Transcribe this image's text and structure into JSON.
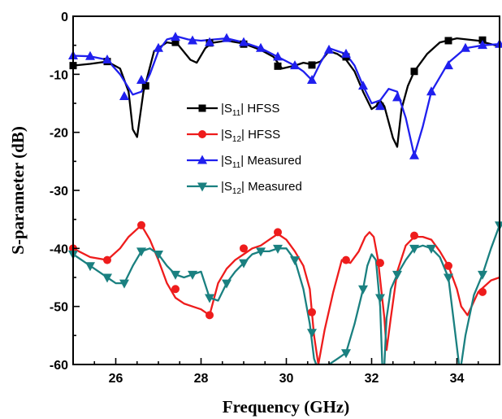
{
  "chart_data": {
    "type": "line",
    "xlabel": "Frequency (GHz)",
    "ylabel": "S-parameter (dB)",
    "xlim": [
      25,
      35
    ],
    "ylim": [
      -60,
      0
    ],
    "xticks": [
      26,
      28,
      30,
      32,
      34
    ],
    "yticks": [
      0,
      -10,
      -20,
      -30,
      -40,
      -50,
      -60
    ],
    "grid": false,
    "legend_position": "center",
    "series": [
      {
        "name": "|S11| HFSS",
        "label_parts": [
          "|S",
          "11",
          "| HFSS"
        ],
        "color": "#000000",
        "marker": "square",
        "x": [
          25.0,
          25.4,
          25.8,
          26.1,
          26.3,
          26.4,
          26.5,
          26.65,
          26.9,
          27.2,
          27.45,
          27.75,
          27.9,
          28.1,
          28.25,
          28.6,
          29.0,
          29.4,
          29.7,
          29.9,
          30.2,
          30.4,
          30.6,
          30.8,
          31.0,
          31.2,
          31.4,
          31.6,
          31.8,
          32.0,
          32.1,
          32.2,
          32.3,
          32.5,
          32.6,
          32.7,
          32.85,
          33.0,
          33.3,
          33.6,
          34.0,
          34.5,
          35.0
        ],
        "y": [
          -8.5,
          -8.2,
          -7.8,
          -9.0,
          -13.0,
          -19.5,
          -20.8,
          -13.0,
          -6.0,
          -4.5,
          -4.8,
          -7.5,
          -8.0,
          -5.5,
          -4.6,
          -4.2,
          -4.7,
          -5.8,
          -7.0,
          -9.0,
          -8.5,
          -8.0,
          -8.3,
          -7.8,
          -6.0,
          -6.5,
          -7.5,
          -9.5,
          -13.0,
          -16.0,
          -15.5,
          -14.5,
          -15.5,
          -21.0,
          -22.5,
          -16.0,
          -12.0,
          -9.5,
          -6.5,
          -4.5,
          -3.8,
          -4.2,
          -5.2
        ],
        "marker_x": [
          25.0,
          25.8,
          26.7,
          27.4,
          28.2,
          29.0,
          29.8,
          30.6,
          31.4,
          32.2,
          33.0,
          33.8,
          34.6
        ],
        "marker_y": [
          -8.5,
          -7.8,
          -12.0,
          -4.5,
          -4.6,
          -4.8,
          -8.6,
          -8.4,
          -7.0,
          -15.5,
          -9.5,
          -4.2,
          -4.1
        ]
      },
      {
        "name": "|S12| HFSS",
        "label_parts": [
          "|S",
          "12",
          "| HFSS"
        ],
        "color": "#ee1c1c",
        "marker": "circle",
        "x": [
          25.0,
          25.4,
          25.8,
          26.1,
          26.3,
          26.6,
          26.8,
          27.0,
          27.2,
          27.4,
          27.6,
          27.8,
          28.0,
          28.2,
          28.4,
          28.6,
          28.8,
          29.0,
          29.2,
          29.4,
          29.6,
          29.8,
          30.0,
          30.2,
          30.4,
          30.55,
          30.65,
          30.75,
          30.9,
          31.1,
          31.3,
          31.5,
          31.7,
          31.85,
          31.95,
          32.05,
          32.15,
          32.3,
          32.35,
          32.45,
          32.6,
          32.8,
          33.0,
          33.2,
          33.4,
          33.6,
          33.8,
          34.0,
          34.1,
          34.25,
          34.5,
          34.8,
          35.0
        ],
        "y": [
          -40.0,
          -41.5,
          -42.0,
          -40.0,
          -38.0,
          -36.0,
          -38.5,
          -42.0,
          -46.0,
          -48.5,
          -49.5,
          -50.0,
          -50.5,
          -51.5,
          -46.0,
          -43.5,
          -42.0,
          -41.0,
          -40.0,
          -39.5,
          -38.5,
          -37.5,
          -38.5,
          -40.5,
          -43.0,
          -47.0,
          -55.0,
          -60.0,
          -54.0,
          -47.5,
          -42.0,
          -42.5,
          -40.5,
          -38.0,
          -37.2,
          -38.0,
          -42.0,
          -52.0,
          -57.5,
          -52.0,
          -44.0,
          -39.5,
          -38.0,
          -38.0,
          -38.5,
          -40.5,
          -43.0,
          -47.0,
          -50.0,
          -51.5,
          -47.5,
          -45.5,
          -45.0
        ],
        "marker_x": [
          25.0,
          25.8,
          26.6,
          27.4,
          28.2,
          29.0,
          29.8,
          30.6,
          31.4,
          32.2,
          33.0,
          33.8,
          34.6
        ],
        "marker_y": [
          -40.0,
          -42.0,
          -36.0,
          -47.0,
          -51.5,
          -40.0,
          -37.2,
          -51.0,
          -42.0,
          -42.5,
          -37.8,
          -43.0,
          -47.5
        ]
      },
      {
        "name": "|S11| Measured",
        "label_parts": [
          "|S",
          "11",
          "| Measured"
        ],
        "color": "#1f1fee",
        "marker": "triangle-up",
        "x": [
          25.0,
          25.4,
          25.8,
          26.1,
          26.4,
          26.6,
          26.8,
          27.0,
          27.2,
          27.45,
          27.7,
          28.0,
          28.3,
          28.6,
          29.0,
          29.4,
          29.8,
          30.2,
          30.4,
          30.6,
          30.8,
          31.0,
          31.4,
          31.6,
          31.8,
          32.0,
          32.2,
          32.4,
          32.6,
          32.8,
          33.0,
          33.2,
          33.4,
          33.8,
          34.2,
          34.6,
          35.0
        ],
        "y": [
          -6.8,
          -6.9,
          -7.5,
          -10.0,
          -13.5,
          -13.0,
          -10.0,
          -6.0,
          -4.0,
          -3.5,
          -4.0,
          -4.2,
          -4.0,
          -3.8,
          -4.5,
          -5.5,
          -7.0,
          -8.5,
          -9.5,
          -11.0,
          -8.0,
          -5.5,
          -6.5,
          -8.5,
          -12.0,
          -15.0,
          -14.5,
          -12.5,
          -13.0,
          -17.5,
          -24.0,
          -19.0,
          -13.0,
          -8.0,
          -5.5,
          -5.0,
          -4.8
        ],
        "marker_x": [
          25.0,
          25.4,
          25.8,
          26.2,
          26.6,
          27.0,
          27.4,
          27.8,
          28.2,
          28.6,
          29.0,
          29.4,
          29.8,
          30.2,
          30.6,
          31.0,
          31.4,
          31.8,
          32.2,
          32.6,
          33.0,
          33.4,
          33.8,
          34.2,
          34.6,
          35.0
        ],
        "marker_y": [
          -6.8,
          -6.9,
          -7.5,
          -13.8,
          -11.0,
          -5.5,
          -3.6,
          -4.2,
          -4.5,
          -3.8,
          -4.5,
          -5.5,
          -7.0,
          -8.5,
          -11.0,
          -5.8,
          -6.5,
          -12.0,
          -15.5,
          -14.0,
          -24.0,
          -13.0,
          -8.5,
          -5.5,
          -5.0,
          -4.8
        ]
      },
      {
        "name": "|S12| Measured",
        "label_parts": [
          "|S",
          "12",
          "| Measured"
        ],
        "color": "#1a8080",
        "marker": "triangle-down",
        "x": [
          25.0,
          25.4,
          25.8,
          26.0,
          26.2,
          26.4,
          26.6,
          26.8,
          27.0,
          27.2,
          27.4,
          27.6,
          27.8,
          28.0,
          28.2,
          28.4,
          28.6,
          28.8,
          29.0,
          29.2,
          29.4,
          29.6,
          29.8,
          30.0,
          30.2,
          30.4,
          30.55,
          30.65,
          30.7,
          30.8,
          31.0,
          31.2,
          31.4,
          31.6,
          31.8,
          31.9,
          32.0,
          32.1,
          32.2,
          32.25,
          32.3,
          32.35,
          32.45,
          32.6,
          32.8,
          33.0,
          33.2,
          33.4,
          33.6,
          33.8,
          33.95,
          34.05,
          34.1,
          34.2,
          34.4,
          34.6,
          34.8,
          35.0
        ],
        "y": [
          -41.0,
          -43.0,
          -45.0,
          -46.0,
          -46.0,
          -43.0,
          -40.5,
          -40.0,
          -41.0,
          -43.0,
          -44.5,
          -45.0,
          -44.5,
          -44.0,
          -48.5,
          -49.0,
          -46.0,
          -44.0,
          -42.5,
          -41.0,
          -40.5,
          -40.5,
          -40.0,
          -40.0,
          -42.0,
          -47.0,
          -53.0,
          -59.0,
          -60.0,
          -60.0,
          -60.0,
          -59.0,
          -58.0,
          -53.0,
          -47.0,
          -43.0,
          -41.0,
          -42.0,
          -50.0,
          -60.0,
          -60.0,
          -52.0,
          -47.0,
          -44.5,
          -42.0,
          -40.0,
          -39.5,
          -40.0,
          -41.5,
          -45.0,
          -54.0,
          -60.0,
          -60.0,
          -55.0,
          -48.0,
          -44.5,
          -40.0,
          -36.0
        ],
        "marker_x": [
          25.0,
          25.4,
          25.8,
          26.2,
          26.6,
          27.0,
          27.4,
          27.8,
          28.2,
          28.6,
          29.0,
          29.4,
          29.8,
          30.2,
          30.6,
          31.4,
          31.8,
          32.2,
          32.6,
          33.0,
          33.4,
          33.8,
          34.6,
          35.0
        ],
        "marker_y": [
          -41.0,
          -43.0,
          -45.0,
          -46.0,
          -40.5,
          -41.0,
          -44.5,
          -44.5,
          -48.5,
          -46.0,
          -42.5,
          -40.5,
          -40.0,
          -42.0,
          -54.5,
          -58.0,
          -47.0,
          -48.5,
          -44.5,
          -40.0,
          -40.0,
          -45.0,
          -44.5,
          -36.0
        ]
      }
    ]
  }
}
